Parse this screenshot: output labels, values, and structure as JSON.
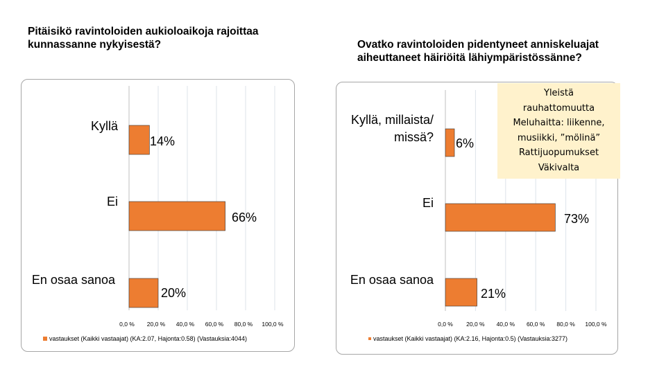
{
  "chart_data": [
    {
      "type": "bar",
      "orientation": "horizontal",
      "title": "Pitäisikö ravintoloiden aukioloaikoja rajoittaa\nkunnassanne nykyisestä?",
      "categories": [
        "Kyllä",
        "Ei",
        "En osaa sanoa"
      ],
      "values": [
        14,
        66,
        20
      ],
      "data_labels": [
        "14%",
        "66%",
        "20%"
      ],
      "xlim": [
        0,
        100
      ],
      "ticks": [
        0,
        20,
        40,
        60,
        80,
        100
      ],
      "tick_labels": [
        "0,0 %",
        "20,0 %",
        "40,0 %",
        "60,0 %",
        "80,0 %",
        "100,0 %"
      ],
      "legend": "vastaukset (Kaikki vastaajat) (KA:2.07, Hajonta:0.58) (Vastauksia:4044)",
      "legend_position": "bottom",
      "grid": true,
      "color": "#ed7d31"
    },
    {
      "type": "bar",
      "orientation": "horizontal",
      "title": "Ovatko ravintoloiden pidentyneet anniskeluajat\naiheuttaneet häiriöitä   lähiympäristössänne?",
      "categories": [
        "Kyllä, millaista/\nmissä?",
        "Ei",
        "En osaa sanoa"
      ],
      "values": [
        6,
        73,
        21
      ],
      "data_labels": [
        "6%",
        "73%",
        "21%"
      ],
      "xlim": [
        0,
        100
      ],
      "ticks": [
        0,
        20,
        40,
        60,
        80,
        100
      ],
      "tick_labels": [
        "0,0 %",
        "20,0 %",
        "40,0 %",
        "60,0 %",
        "80,0 %",
        "100,0 %"
      ],
      "legend": "vastaukset (Kaikki vastaajat) (KA:2.16, Hajonta:0.5) (Vastauksia:3277)",
      "legend_position": "bottom",
      "grid": true,
      "color": "#ed7d31"
    }
  ],
  "note": {
    "lines": [
      "Yleistä",
      "rauhattomuutta",
      "Meluhaitta: liikenne,",
      "musiikki, ”mölinä”",
      "Rattijuopumukset",
      "Väkivalta"
    ],
    "background": "#fff2cc"
  }
}
